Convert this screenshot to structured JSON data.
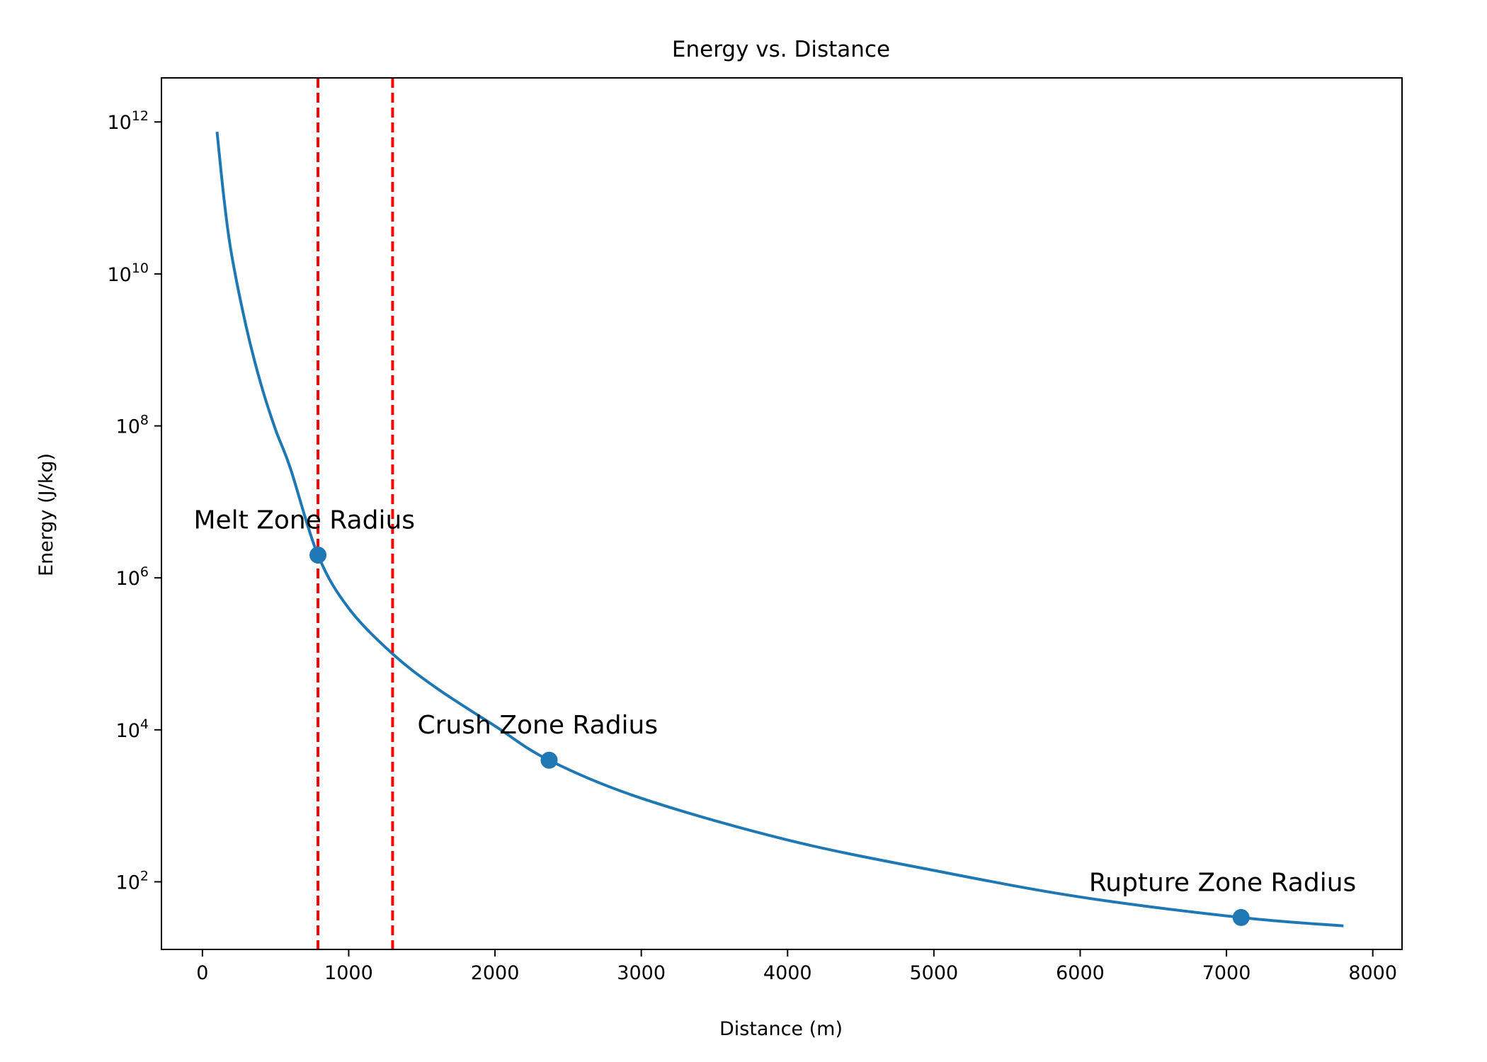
{
  "chart_data": {
    "type": "line",
    "title": "Energy vs. Distance",
    "xlabel": "Distance (m)",
    "ylabel": "Energy (J/kg)",
    "xlim": [
      -280,
      8200
    ],
    "ylim_log10": [
      1.11,
      12.58
    ],
    "yscale": "log",
    "x_ticks": [
      0,
      1000,
      2000,
      3000,
      4000,
      5000,
      6000,
      7000,
      8000
    ],
    "x_tick_labels": [
      "0",
      "1000",
      "2000",
      "3000",
      "4000",
      "5000",
      "6000",
      "7000",
      "8000"
    ],
    "y_ticks": [
      {
        "base": "10",
        "exp": "2",
        "log10": 2
      },
      {
        "base": "10",
        "exp": "4",
        "log10": 4
      },
      {
        "base": "10",
        "exp": "6",
        "log10": 6
      },
      {
        "base": "10",
        "exp": "8",
        "log10": 8
      },
      {
        "base": "10",
        "exp": "10",
        "log10": 10
      },
      {
        "base": "10",
        "exp": "12",
        "log10": 12
      }
    ],
    "grid": false,
    "series": [
      {
        "name": "Energy",
        "color": "#1f77b4",
        "points": [
          {
            "x": 100,
            "y_log10": 11.87
          },
          {
            "x": 150,
            "y_log10": 10.95
          },
          {
            "x": 200,
            "y_log10": 10.25
          },
          {
            "x": 300,
            "y_log10": 9.3
          },
          {
            "x": 400,
            "y_log10": 8.55
          },
          {
            "x": 500,
            "y_log10": 7.95
          },
          {
            "x": 600,
            "y_log10": 7.45
          },
          {
            "x": 790,
            "y_log10": 6.3
          },
          {
            "x": 1000,
            "y_log10": 5.6
          },
          {
            "x": 1300,
            "y_log10": 5.0
          },
          {
            "x": 1600,
            "y_log10": 4.55
          },
          {
            "x": 2000,
            "y_log10": 4.05
          },
          {
            "x": 2370,
            "y_log10": 3.6
          },
          {
            "x": 3000,
            "y_log10": 3.1
          },
          {
            "x": 4000,
            "y_log10": 2.55
          },
          {
            "x": 5000,
            "y_log10": 2.15
          },
          {
            "x": 6000,
            "y_log10": 1.8
          },
          {
            "x": 7100,
            "y_log10": 1.53
          },
          {
            "x": 7800,
            "y_log10": 1.42
          }
        ]
      }
    ],
    "markers": [
      {
        "label": "Melt Zone Radius",
        "x": 790,
        "y_log10": 6.3,
        "label_dx": -850,
        "label_dlog": 0.35
      },
      {
        "label": "Crush Zone Radius",
        "x": 2370,
        "y_log10": 3.6,
        "label_dx": -900,
        "label_dlog": 0.35
      },
      {
        "label": "Rupture Zone Radius",
        "x": 7100,
        "y_log10": 1.53,
        "label_dx": -1040,
        "label_dlog": 0.35
      }
    ],
    "vlines": [
      {
        "x": 790,
        "color": "#ff0000",
        "style": "dashed"
      },
      {
        "x": 1300,
        "color": "#ff0000",
        "style": "dashed"
      }
    ]
  }
}
